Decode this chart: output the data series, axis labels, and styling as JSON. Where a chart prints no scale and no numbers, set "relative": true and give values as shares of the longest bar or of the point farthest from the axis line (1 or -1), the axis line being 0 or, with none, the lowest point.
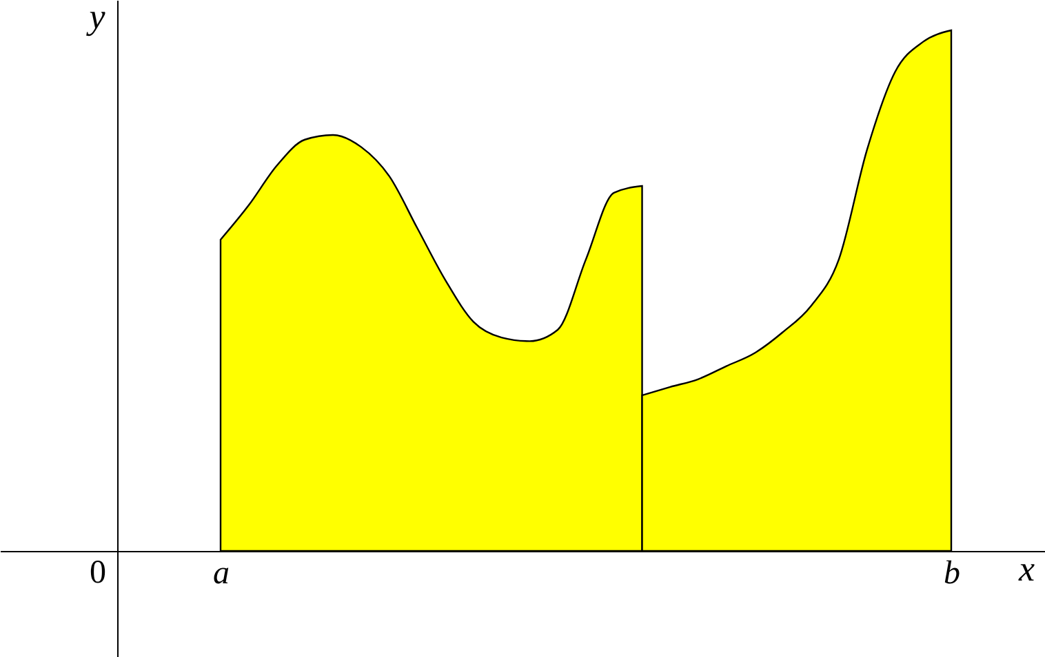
{
  "chart_data": {
    "type": "area",
    "relative": true,
    "xlabel": "x",
    "ylabel": "y",
    "grid": false,
    "categories": [
      "a",
      null,
      null,
      null,
      null,
      null,
      null,
      null,
      null,
      null,
      null,
      null,
      null,
      null,
      null,
      null,
      null,
      null,
      null,
      null,
      null,
      null,
      null,
      null,
      null,
      null,
      "b"
    ],
    "annotations": [
      "0"
    ],
    "series": [
      {
        "color": "#ffff00",
        "values": [
          0.598,
          0.664,
          0.74,
          0.79,
          0.799,
          0.776,
          0.72,
          0.62,
          0.52,
          0.44,
          0.41,
          0.403,
          0.425,
          0.56,
          0.688,
          0.701,
          null,
          null,
          null,
          null,
          null,
          null,
          null,
          null,
          null,
          null,
          null
        ]
      },
      {
        "color": "#ffff00",
        "values": [
          null,
          null,
          null,
          null,
          null,
          null,
          null,
          null,
          null,
          null,
          null,
          null,
          null,
          null,
          null,
          0.299,
          0.315,
          0.33,
          0.355,
          0.38,
          0.42,
          0.47,
          0.56,
          0.77,
          0.92,
          0.978,
          1.0
        ]
      }
    ]
  }
}
